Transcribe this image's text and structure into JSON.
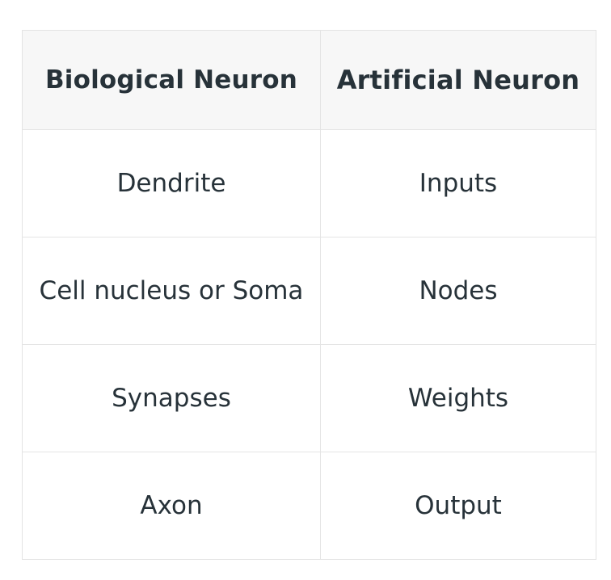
{
  "table": {
    "headers": [
      "Biological Neuron",
      "Artificial Neuron"
    ],
    "rows": [
      [
        "Dendrite",
        "Inputs"
      ],
      [
        "Cell nucleus or Soma",
        "Nodes"
      ],
      [
        "Synapses",
        "Weights"
      ],
      [
        "Axon",
        "Output"
      ]
    ]
  }
}
